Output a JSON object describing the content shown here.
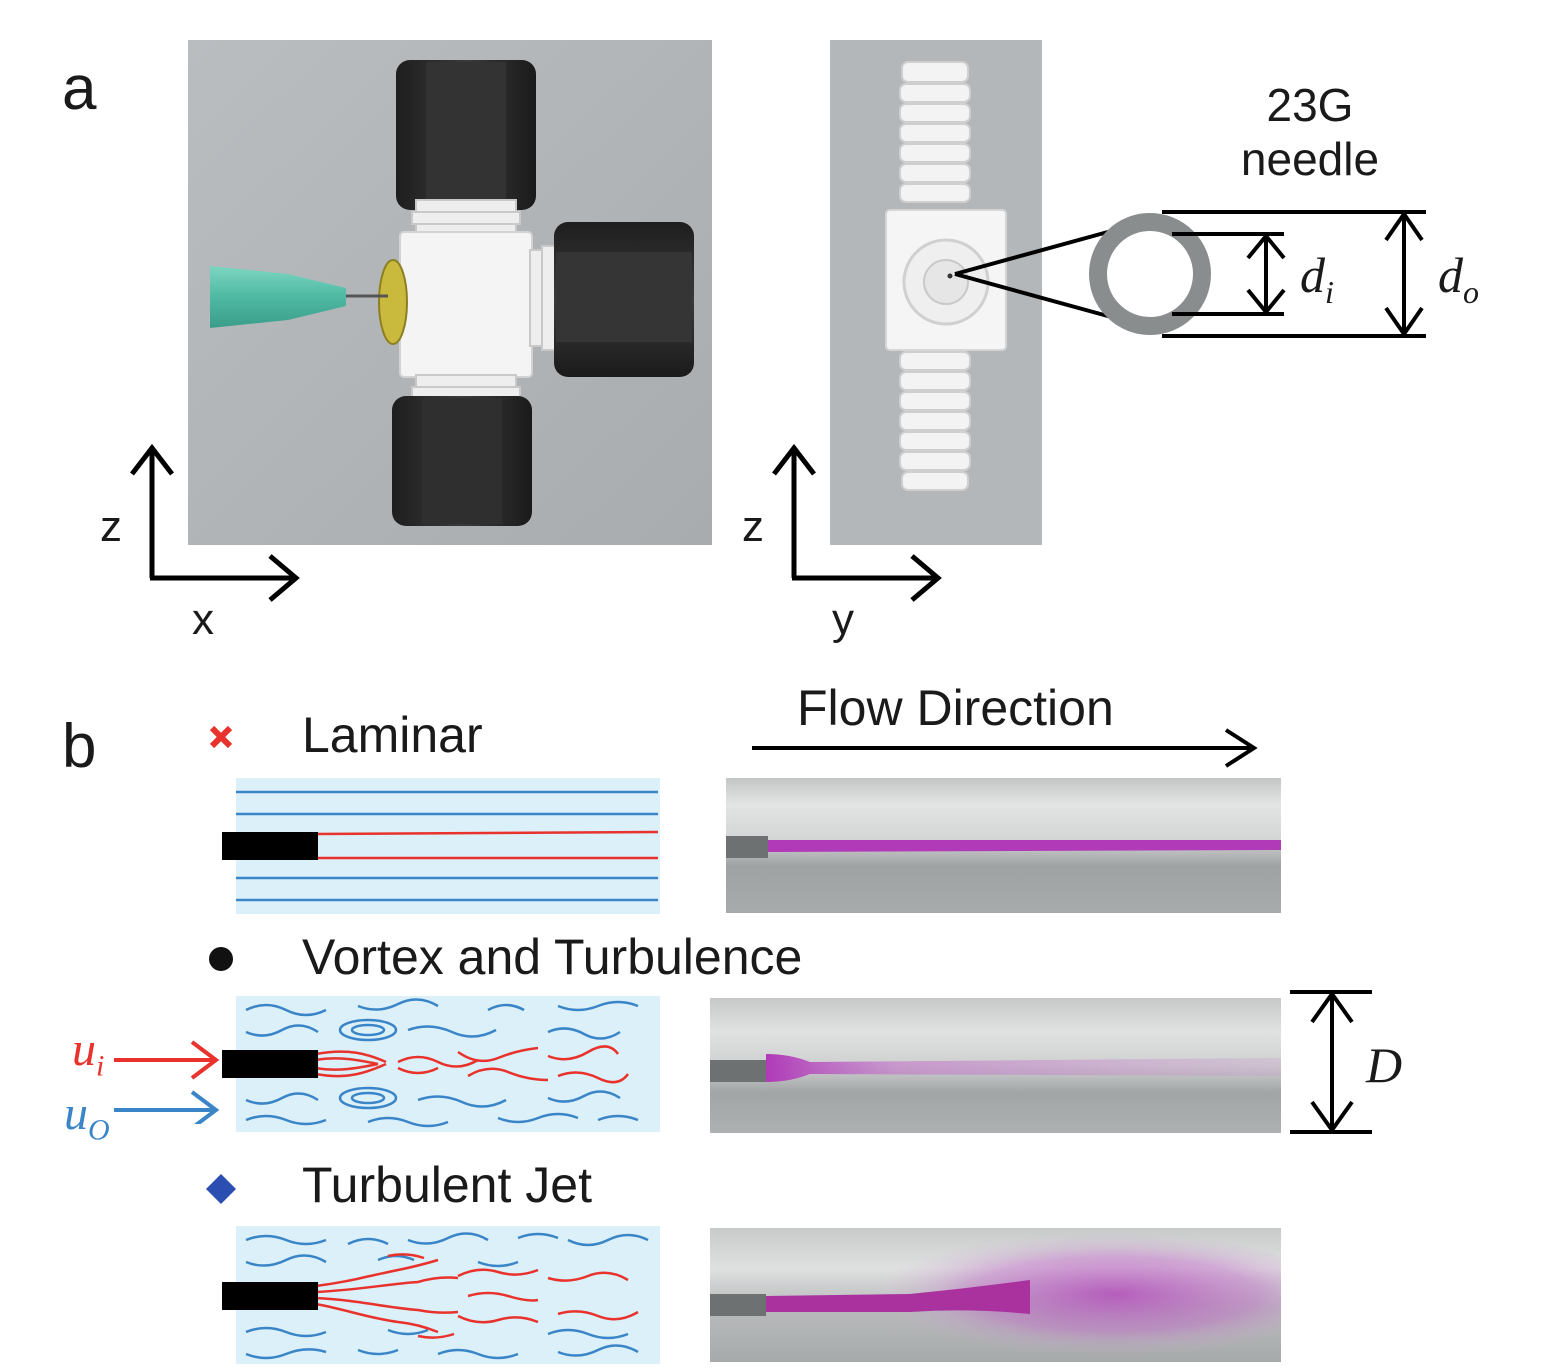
{
  "figure": {
    "panel_a": {
      "label": "a",
      "left_axes": {
        "vertical": "z",
        "horizontal": "x"
      },
      "right_axes": {
        "vertical": "z",
        "horizontal": "y"
      },
      "needle_label_line1": "23G",
      "needle_label_line2": "needle",
      "inner_diameter_symbol": "d",
      "inner_diameter_subscript": "i",
      "outer_diameter_symbol": "d",
      "outer_diameter_subscript": "o"
    },
    "panel_b": {
      "label": "b",
      "flow_direction": "Flow Direction",
      "tube_diameter_symbol": "D",
      "inner_velocity_symbol": "u",
      "inner_velocity_subscript": "i",
      "outer_velocity_symbol": "u",
      "outer_velocity_subscript": "O",
      "regimes": [
        {
          "name": "Laminar",
          "marker": "cross",
          "marker_color": "#e8322b"
        },
        {
          "name": "Vortex and Turbulence",
          "marker": "circle",
          "marker_color": "#111111"
        },
        {
          "name": "Turbulent Jet",
          "marker": "diamond",
          "marker_color": "#2a4fb0"
        }
      ]
    },
    "colors": {
      "inner_stream": "#e8322b",
      "outer_stream": "#3a85c8",
      "channel_fill": "#dcf0fa",
      "dye": "#b03ab8",
      "fitting_white": "#f3f3f3",
      "nut_black": "#2b2b2b",
      "needle_hub": "#5fc6b0"
    }
  }
}
